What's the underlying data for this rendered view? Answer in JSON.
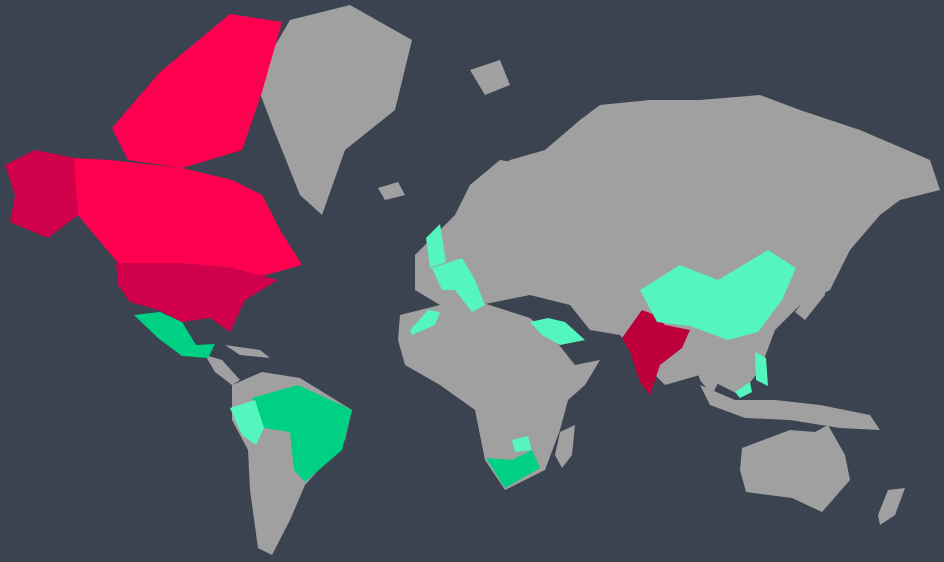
{
  "colors": {
    "background": "#3b4350",
    "land": "#a0a0a0",
    "scale_high": "#ff0050",
    "scale_high_dark": "#d0004a",
    "scale_highest": "#bd003c",
    "scale_mid": "#00d084",
    "scale_low": "#55f5c0"
  }
}
